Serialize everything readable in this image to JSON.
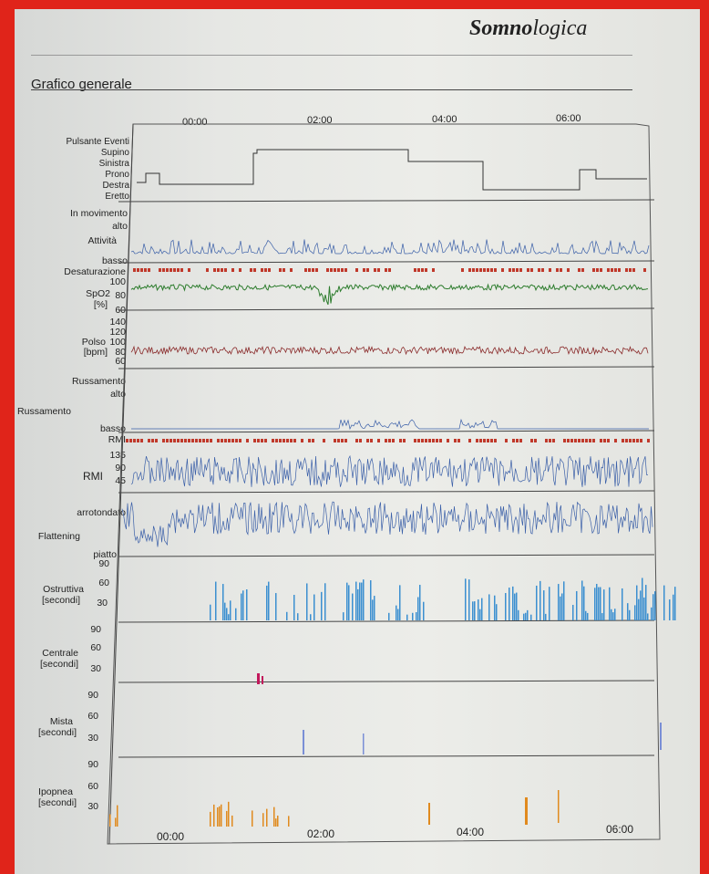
{
  "brand": {
    "bold": "Somno",
    "rest": "logica"
  },
  "section_title": "Grafico generale",
  "time_labels": [
    "00:00",
    "02:00",
    "04:00",
    "06:00"
  ],
  "labels": {
    "pulsante_eventi": "Pulsante Eventi",
    "supino": "Supino",
    "sinistra": "Sinistra",
    "prono": "Prono",
    "destra": "Destra",
    "eretto": "Eretto",
    "in_movimento": "In movimento",
    "alto_1": "alto",
    "attivita": "Attività",
    "basso_1": "basso",
    "desaturazione": "Desaturazione",
    "spo2_100": "100",
    "spo2_name": "SpO2",
    "spo2_80": "80",
    "spo2_unit": "[%]",
    "spo2_60": "60",
    "polso_140": "140",
    "polso_120": "120",
    "polso_name": "Polso",
    "polso_100": "100",
    "polso_unit": "[bpm]",
    "polso_80": "80",
    "polso_60": "60",
    "russamento_top": "Russamento",
    "alto_2": "alto",
    "russamento": "Russamento",
    "basso_2": "basso",
    "rmi_top": "RMI",
    "rmi_135": "135",
    "rmi_90": "90",
    "rmi_name": "RMI",
    "rmi_45": "45",
    "arrotondato": "arrotondato",
    "flattening": "Flattening",
    "piatto": "piatto",
    "ostr_90": "90",
    "ostr_name": "Ostruttiva",
    "ostr_60": "60",
    "ostr_unit": "[secondi]",
    "ostr_30": "30",
    "cent_90": "90",
    "cent_name": "Centrale",
    "cent_60": "60",
    "cent_unit": "[secondi]",
    "cent_30": "30",
    "mista_90": "90",
    "mista_name": "Mista",
    "mista_60": "60",
    "mista_unit": "[secondi]",
    "mista_30": "30",
    "ipo_90": "90",
    "ipo_name": "Ipopnea",
    "ipo_60": "60",
    "ipo_unit": "[secondi]",
    "ipo_30": "30"
  },
  "colors": {
    "spo2": "#2e7d2e",
    "polso": "#8a2b2b",
    "activity": "#3a5fa8",
    "desat": "#c0392b",
    "ostruttiva": "#3b8fd0",
    "centrale": "#c2185b",
    "mista": "#7a8fd6",
    "ipopnea": "#e08a1e"
  }
}
